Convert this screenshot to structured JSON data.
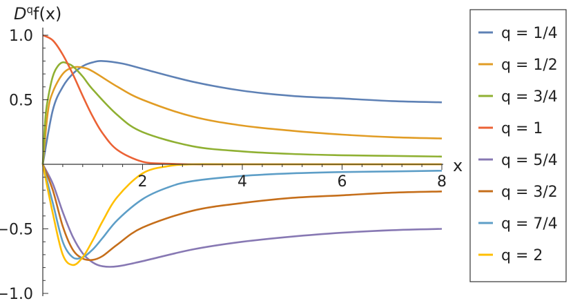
{
  "chart_data": {
    "type": "line",
    "ylabel_base": "D",
    "ylabel_sup": "q",
    "ylabel_rest": "f(x)",
    "xlabel": "x",
    "xlim": [
      0,
      8
    ],
    "ylim": [
      -1.0,
      1.0
    ],
    "xticks": [
      {
        "value": 2,
        "label": "2"
      },
      {
        "value": 4,
        "label": "4"
      },
      {
        "value": 6,
        "label": "6"
      },
      {
        "value": 8,
        "label": "8"
      }
    ],
    "yticks": [
      {
        "value": 1.0,
        "label": "1.0"
      },
      {
        "value": 0.5,
        "label": "0.5"
      },
      {
        "value": -0.5,
        "label": "−0.5"
      },
      {
        "value": -1.0,
        "label": "−1.0"
      }
    ],
    "legend_position": "right",
    "series": [
      {
        "name": "q = 1/4",
        "color": "#5E81B5",
        "x": [
          0,
          0.2,
          0.4,
          0.6,
          0.8,
          1.0,
          1.2,
          1.6,
          2.0,
          3.0,
          4.0,
          5.0,
          6.0,
          7.0,
          8.0
        ],
        "y": [
          0,
          0.42,
          0.6,
          0.7,
          0.76,
          0.79,
          0.8,
          0.78,
          0.74,
          0.64,
          0.57,
          0.53,
          0.51,
          0.49,
          0.48
        ]
      },
      {
        "name": "q = 1/2",
        "color": "#E19C24",
        "x": [
          0,
          0.1,
          0.2,
          0.4,
          0.6,
          0.8,
          1.0,
          1.5,
          2.0,
          3.0,
          4.0,
          5.0,
          6.0,
          7.0,
          8.0
        ],
        "y": [
          0,
          0.4,
          0.56,
          0.7,
          0.75,
          0.75,
          0.72,
          0.6,
          0.5,
          0.37,
          0.3,
          0.26,
          0.23,
          0.21,
          0.2
        ]
      },
      {
        "name": "q = 3/4",
        "color": "#8FB032",
        "x": [
          0,
          0.05,
          0.1,
          0.2,
          0.3,
          0.4,
          0.5,
          0.6,
          0.8,
          1.0,
          1.5,
          2.0,
          3.0,
          4.0,
          5.0,
          6.0,
          7.0,
          8.0
        ],
        "y": [
          0,
          0.35,
          0.5,
          0.68,
          0.76,
          0.79,
          0.78,
          0.76,
          0.68,
          0.58,
          0.38,
          0.25,
          0.14,
          0.1,
          0.08,
          0.07,
          0.065,
          0.06
        ]
      },
      {
        "name": "q = 1",
        "color": "#EB6235",
        "x": [
          0,
          0.2,
          0.4,
          0.6,
          0.8,
          1.0,
          1.2,
          1.5,
          2.0,
          2.5,
          3.0,
          4.0,
          8.0
        ],
        "y": [
          1.0,
          0.96,
          0.85,
          0.7,
          0.53,
          0.37,
          0.24,
          0.11,
          0.02,
          0.005,
          0,
          0,
          0
        ]
      },
      {
        "name": "q = 5/4",
        "color": "#8778B3",
        "x": [
          0,
          0.2,
          0.4,
          0.6,
          0.8,
          1.0,
          1.2,
          1.5,
          2.0,
          3.0,
          4.0,
          5.0,
          6.0,
          7.0,
          8.0
        ],
        "y": [
          0,
          -0.15,
          -0.37,
          -0.56,
          -0.69,
          -0.76,
          -0.79,
          -0.79,
          -0.75,
          -0.66,
          -0.6,
          -0.56,
          -0.53,
          -0.51,
          -0.5
        ]
      },
      {
        "name": "q = 3/2",
        "color": "#C56E1A",
        "x": [
          0,
          0.2,
          0.4,
          0.6,
          0.8,
          1.0,
          1.2,
          1.5,
          2.0,
          3.0,
          4.0,
          5.0,
          6.0,
          7.0,
          8.0
        ],
        "y": [
          0,
          -0.2,
          -0.48,
          -0.66,
          -0.73,
          -0.74,
          -0.71,
          -0.62,
          -0.49,
          -0.36,
          -0.3,
          -0.26,
          -0.24,
          -0.22,
          -0.21
        ]
      },
      {
        "name": "q = 7/4",
        "color": "#5D9EC7",
        "x": [
          0,
          0.2,
          0.4,
          0.6,
          0.8,
          1.0,
          1.2,
          1.5,
          2.0,
          2.5,
          3.0,
          4.0,
          5.0,
          6.0,
          7.0,
          8.0
        ],
        "y": [
          0,
          -0.3,
          -0.6,
          -0.72,
          -0.72,
          -0.66,
          -0.57,
          -0.43,
          -0.27,
          -0.18,
          -0.13,
          -0.09,
          -0.07,
          -0.06,
          -0.055,
          -0.05
        ]
      },
      {
        "name": "q = 2",
        "color": "#FFBF00",
        "x": [
          0,
          0.2,
          0.4,
          0.6,
          0.8,
          1.0,
          1.2,
          1.5,
          2.0,
          2.5,
          3.0,
          4.0,
          8.0
        ],
        "y": [
          0,
          -0.38,
          -0.7,
          -0.78,
          -0.72,
          -0.59,
          -0.44,
          -0.25,
          -0.07,
          -0.015,
          0,
          0,
          0
        ]
      }
    ]
  }
}
